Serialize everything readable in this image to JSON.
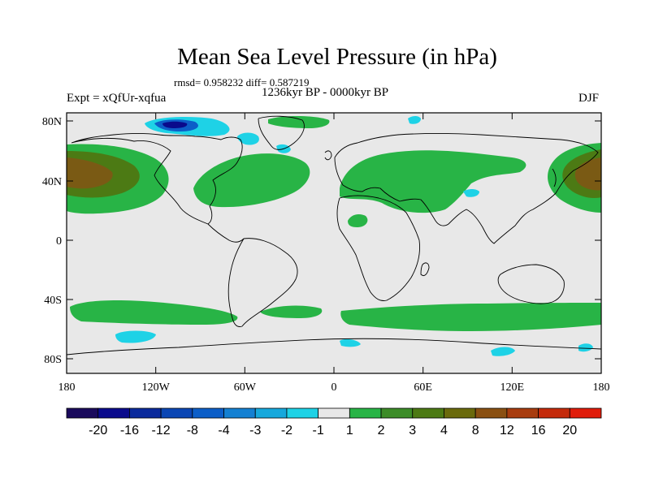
{
  "title": "Mean Sea Level Pressure (in hPa)",
  "stats": "rmsd= 0.958232 diff= 0.587219",
  "period": "1236kyr BP - 0000kyr BP",
  "experiment": "Expt = xQfUr-xqfua",
  "season": "DJF",
  "lat_labels": [
    "80N",
    "40N",
    "0",
    "40S",
    "80S"
  ],
  "lon_labels": [
    "180",
    "120W",
    "60W",
    "0",
    "60E",
    "120E",
    "180"
  ],
  "colorbar": {
    "labels": [
      "-20",
      "-16",
      "-12",
      "-8",
      "-4",
      "-3",
      "-2",
      "-1",
      "1",
      "2",
      "3",
      "4",
      "8",
      "12",
      "16",
      "20"
    ],
    "colors": [
      "#1a0a5c",
      "#0a0a8c",
      "#0a2a9c",
      "#0a46b4",
      "#0c5ec8",
      "#1480d2",
      "#16a8dc",
      "#1ed2e6",
      "#e8e8e8",
      "#28b446",
      "#3c8c28",
      "#4c7a14",
      "#6a6a0c",
      "#8a5012",
      "#a83c0e",
      "#c42a0a",
      "#e01c0a"
    ]
  },
  "colors": {
    "neutral": "#e8e8e8",
    "green_light": "#28b446",
    "olive": "#4c7a14",
    "brown": "#7a5a14",
    "cyan": "#1ed2e6",
    "blue": "#0c5ec8",
    "navy": "#0a0a8c",
    "coast": "#000000"
  }
}
